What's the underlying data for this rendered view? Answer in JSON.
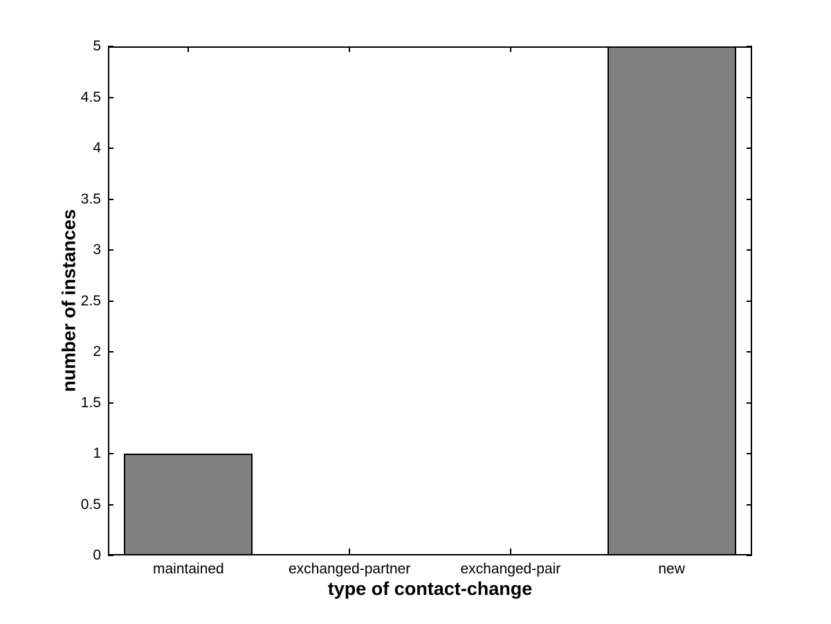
{
  "chart_data": {
    "type": "bar",
    "categories": [
      "maintained",
      "exchanged-partner",
      "exchanged-pair",
      "new"
    ],
    "values": [
      1,
      0,
      0,
      5
    ],
    "title": "",
    "xlabel": "type of contact-change",
    "ylabel": "number of instances",
    "ylim": [
      0,
      5
    ],
    "ytick_step": 0.5,
    "ytick_labels": [
      "0",
      "0.5",
      "1",
      "1.5",
      "2",
      "2.5",
      "3",
      "3.5",
      "4",
      "4.5",
      "5"
    ],
    "xlim": [
      0.5,
      4.5
    ],
    "bar_width_fraction": 0.8,
    "bar_fill_color": "#808080",
    "bar_edge_color": "#000000",
    "axis_color": "#000000",
    "background_color": "#ffffff",
    "grid": false,
    "legend": null
  }
}
